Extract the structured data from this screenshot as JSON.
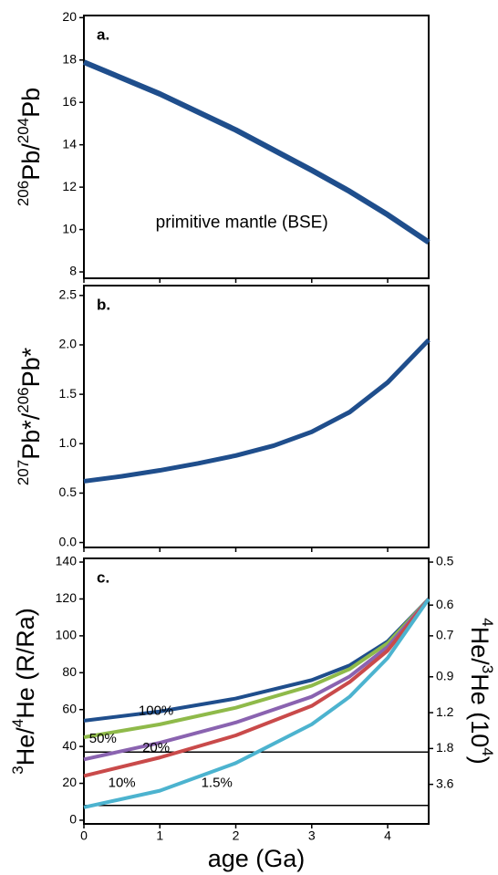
{
  "chart_data": [
    {
      "type": "line",
      "panel_label": "a.",
      "ylabel": [
        {
          "text": "206",
          "sup": true
        },
        {
          "text": "Pb/"
        },
        {
          "text": "204",
          "sup": true
        },
        {
          "text": "Pb"
        }
      ],
      "x": [
        0,
        1,
        2,
        3,
        3.5,
        4,
        4.54
      ],
      "series": [
        {
          "name": "primitive mantle (BSE)",
          "color": "#1f4e8c",
          "values": [
            17.9,
            16.4,
            14.7,
            12.8,
            11.8,
            10.7,
            9.4
          ]
        }
      ],
      "xlim": [
        0,
        4.54
      ],
      "xticks": [
        0,
        1,
        2,
        3,
        4
      ],
      "show_xtick_labels": false,
      "ylim": [
        7.7,
        20.1
      ],
      "yticks": [
        8,
        10,
        12,
        14,
        16,
        18,
        20
      ]
    },
    {
      "type": "line",
      "panel_label": "b.",
      "ylabel": [
        {
          "text": "207",
          "sup": true
        },
        {
          "text": "Pb*/"
        },
        {
          "text": "206",
          "sup": true
        },
        {
          "text": "Pb*"
        }
      ],
      "x": [
        0,
        0.5,
        1,
        1.5,
        2,
        2.5,
        3,
        3.5,
        4,
        4.54
      ],
      "series": [
        {
          "color": "#1f4e8c",
          "values": [
            0.62,
            0.67,
            0.73,
            0.8,
            0.88,
            0.98,
            1.12,
            1.32,
            1.62,
            2.05
          ]
        }
      ],
      "xlim": [
        0,
        4.54
      ],
      "xticks": [
        0,
        1,
        2,
        3,
        4
      ],
      "show_xtick_labels": false,
      "ylim": [
        -0.05,
        2.6
      ],
      "yticks": [
        {
          "value": 0,
          "label": "0.0"
        },
        0.5,
        {
          "value": 1,
          "label": "1.0"
        },
        1.5,
        {
          "value": 2,
          "label": "2.0"
        },
        2.5
      ]
    },
    {
      "type": "line",
      "panel_label": "c.",
      "ylabel": [
        {
          "text": "3",
          "sup": true
        },
        {
          "text": "He/"
        },
        {
          "text": "4",
          "sup": true
        },
        {
          "text": "He (R/Ra)"
        }
      ],
      "y2label": [
        {
          "text": "4",
          "sup": true
        },
        {
          "text": "He/"
        },
        {
          "text": "3",
          "sup": true
        },
        {
          "text": "He (10"
        },
        {
          "text": "4",
          "sup": true
        },
        {
          "text": ")"
        }
      ],
      "xlabel": "age (Ga)",
      "x": [
        0,
        1,
        2,
        3,
        3.5,
        4,
        4.54
      ],
      "series": [
        {
          "name": "100%",
          "color": "#1f4e8c",
          "values": [
            54,
            59,
            66,
            76,
            84,
            97,
            120
          ]
        },
        {
          "name": "50%",
          "color": "#8fba4a",
          "values": [
            45,
            52,
            61,
            73,
            82,
            96,
            120
          ]
        },
        {
          "name": "20%",
          "color": "#8a63b0",
          "values": [
            33,
            42,
            53,
            67,
            78,
            94,
            120
          ]
        },
        {
          "name": "10%",
          "color": "#c94a4a",
          "values": [
            24,
            34,
            46,
            62,
            75,
            92,
            120
          ]
        },
        {
          "name": "1.5%",
          "color": "#4cb3cf",
          "values": [
            7,
            16,
            31,
            52,
            67,
            88,
            120
          ]
        }
      ],
      "hlines": [
        37,
        8
      ],
      "xlim": [
        0,
        4.54
      ],
      "xticks": [
        0,
        1,
        2,
        3,
        4
      ],
      "show_xtick_labels": true,
      "ylim": [
        -2,
        142
      ],
      "yticks": [
        0,
        20,
        40,
        60,
        80,
        100,
        120,
        140
      ],
      "y2_scale": "reciprocal",
      "y2_factor": 70,
      "y2ticks": [
        0.5,
        0.6,
        0.7,
        0.9,
        1.2,
        1.8,
        3.6
      ]
    }
  ]
}
